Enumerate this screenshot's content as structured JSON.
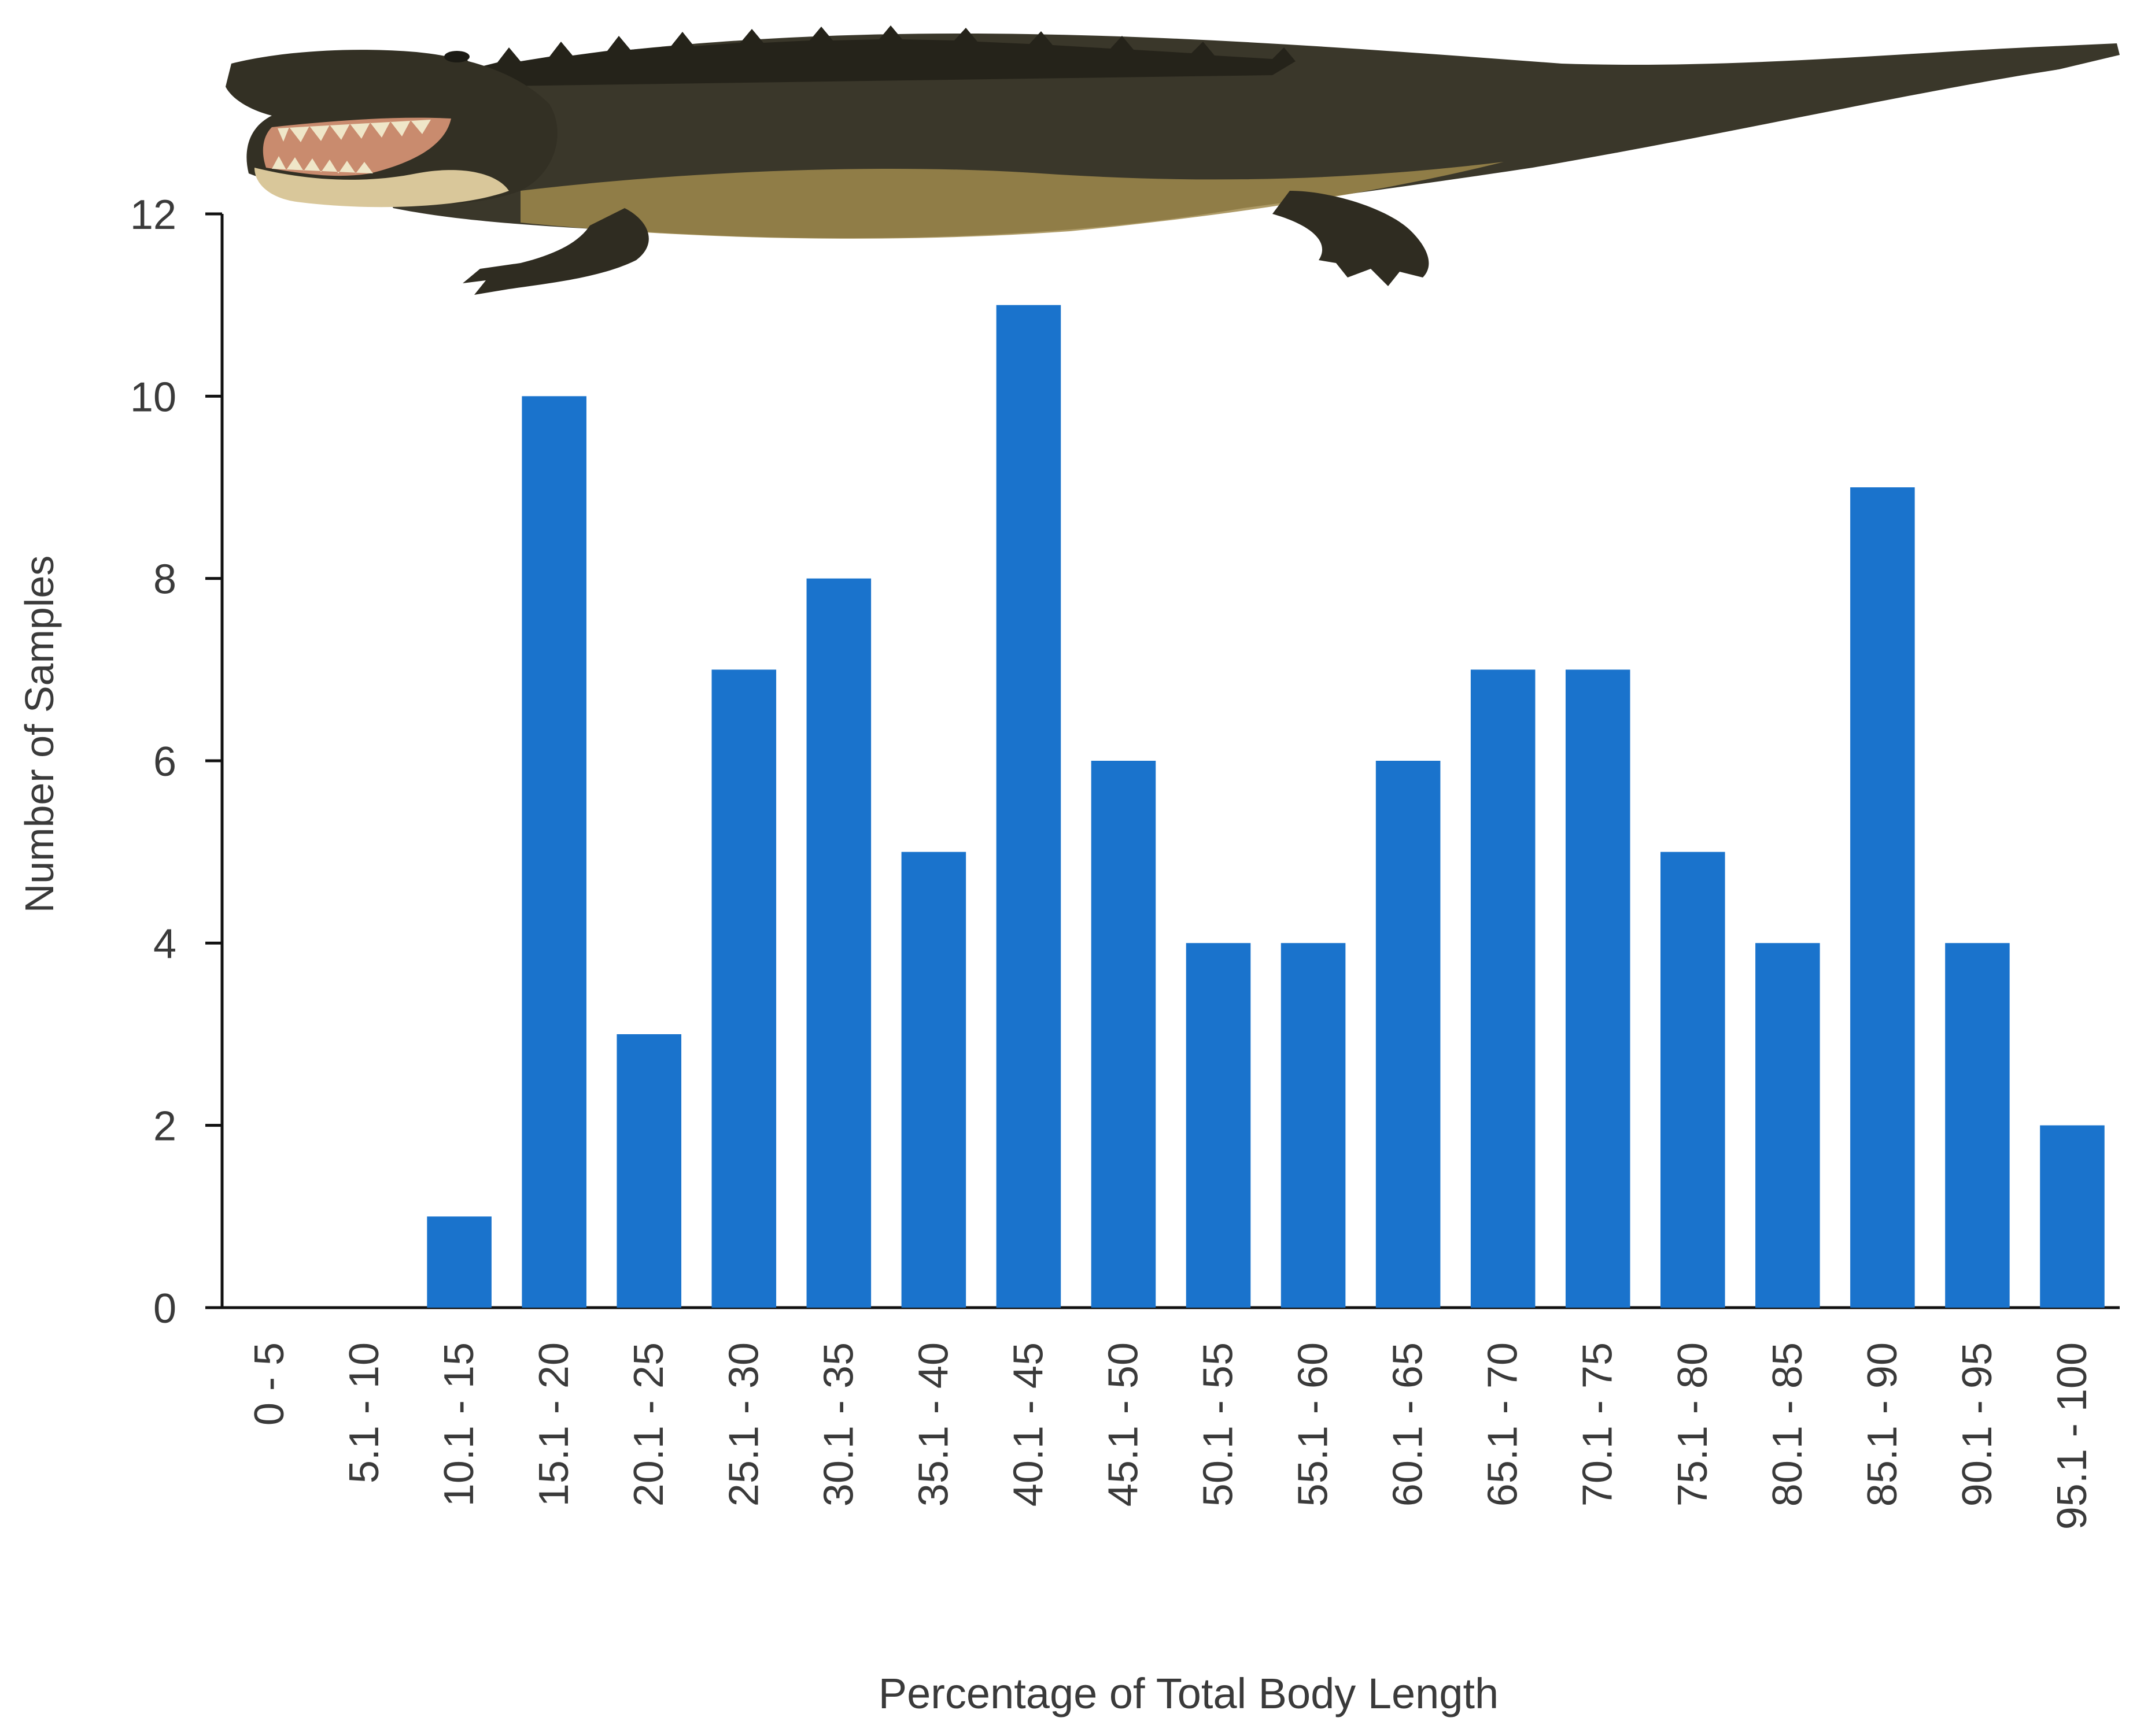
{
  "chart_data": {
    "type": "bar",
    "title": "",
    "xlabel": "Percentage of Total Body Length",
    "ylabel": "Number of Samples",
    "ylim": [
      0,
      12
    ],
    "yticks": [
      0,
      2,
      4,
      6,
      8,
      10,
      12
    ],
    "grid": false,
    "legend": "none",
    "bar_color": "#1a73cc",
    "axis_color": "#111111",
    "categories": [
      "0 - 5",
      "5.1 - 10",
      "10.1 - 15",
      "15.1 - 20",
      "20.1 - 25",
      "25.1 - 30",
      "30.1 - 35",
      "35.1 - 40",
      "40.1 - 45",
      "45.1 - 50",
      "50.1 - 55",
      "55.1 - 60",
      "60.1 - 65",
      "65.1 - 70",
      "70.1 - 75",
      "75.1 - 80",
      "80.1 - 85",
      "85.1 - 90",
      "90.1 - 95",
      "95.1 - 100"
    ],
    "values": [
      0,
      0,
      1,
      10,
      3,
      7,
      8,
      5,
      11,
      6,
      4,
      4,
      6,
      7,
      7,
      5,
      4,
      9,
      4,
      2
    ]
  },
  "illustration": {
    "icon": "alligator-illustration",
    "colors": {
      "dark": "#2d2b20",
      "mid": "#4a4632",
      "belly": "#b59a52",
      "teeth": "#efe6c8",
      "mouth": "#c98b6e"
    }
  }
}
